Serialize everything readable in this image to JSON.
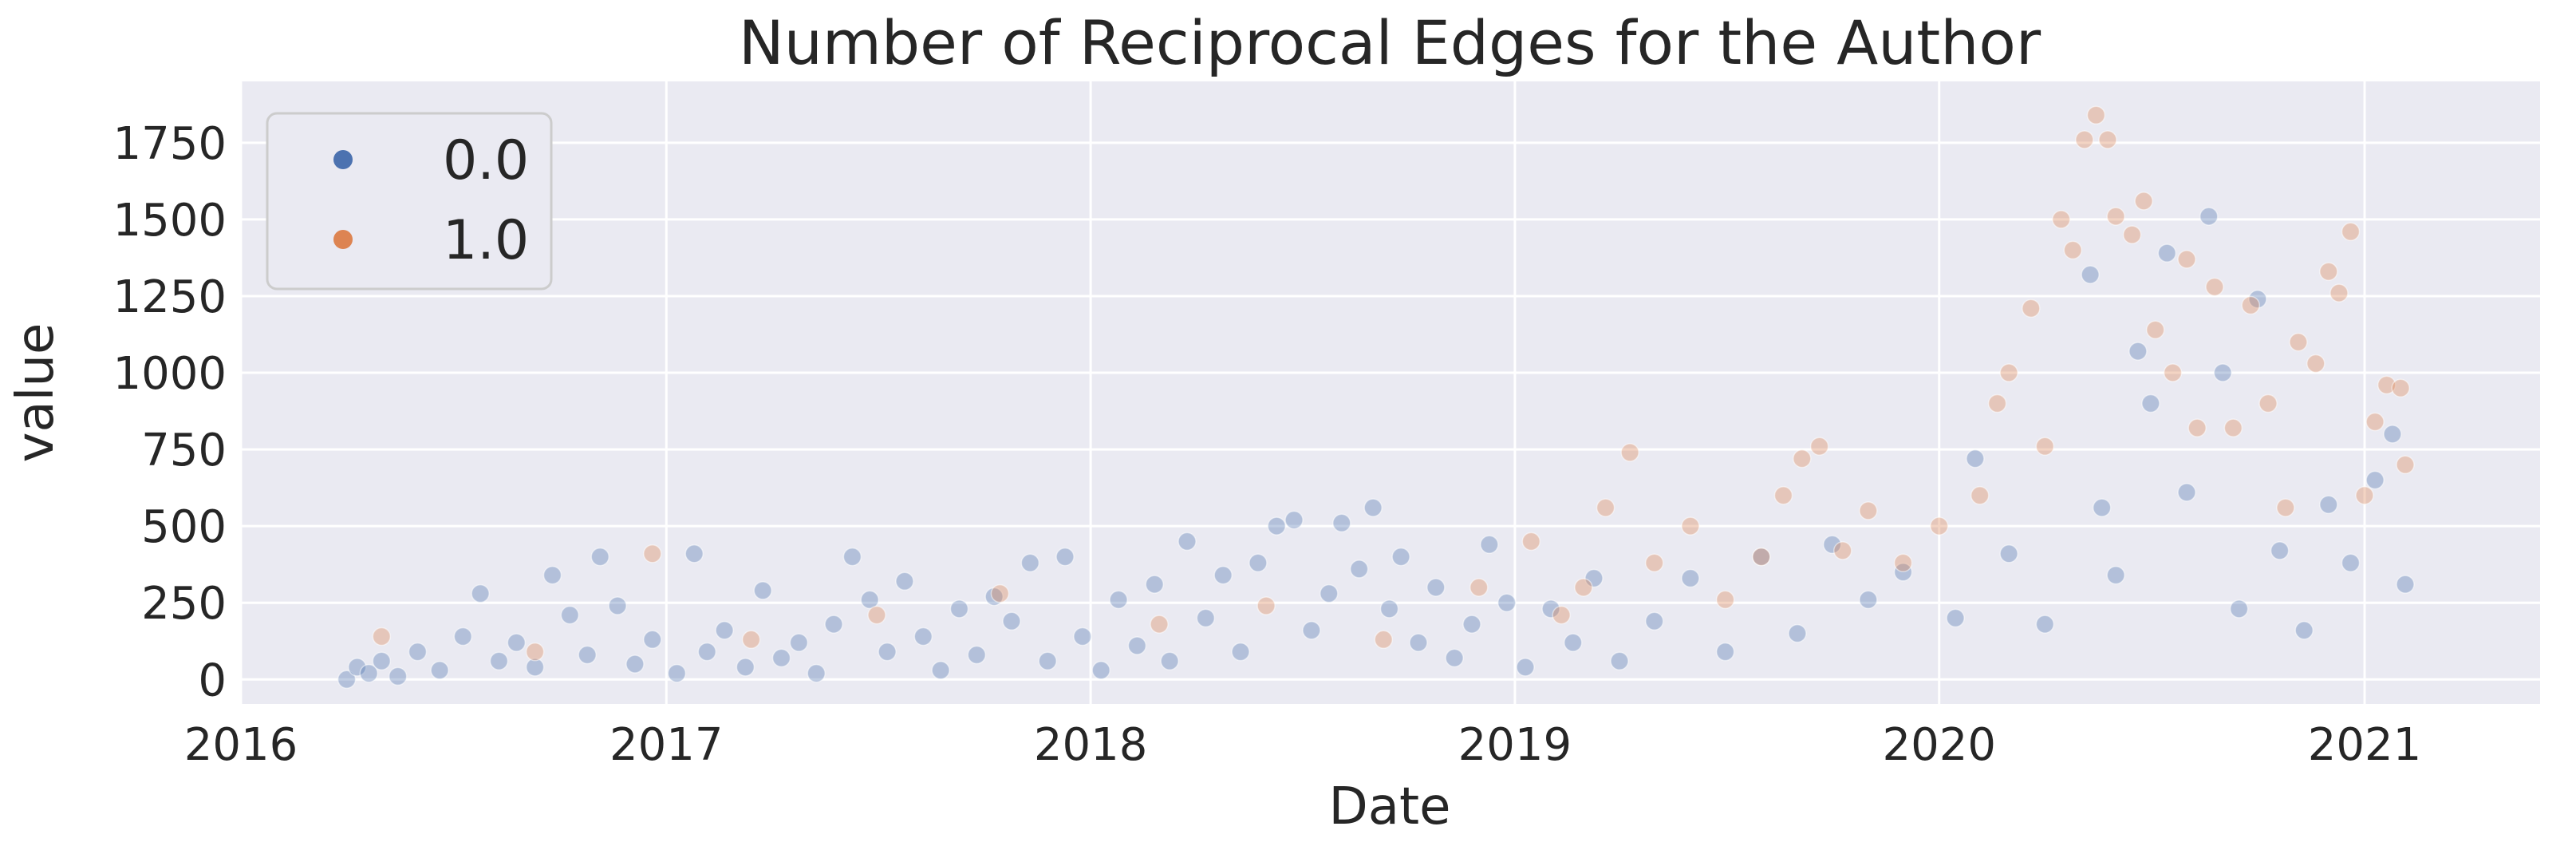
{
  "chart_data": {
    "type": "scatter",
    "title": "Number of Reciprocal Edges for the Author",
    "xlabel": "Date",
    "ylabel": "value",
    "x_type": "date",
    "xlim": [
      "2016-01-01",
      "2021-06-01"
    ],
    "ylim": [
      -80,
      1950
    ],
    "xticks": [
      {
        "value": "2016-01-01",
        "label": "2016"
      },
      {
        "value": "2017-01-01",
        "label": "2017"
      },
      {
        "value": "2018-01-01",
        "label": "2018"
      },
      {
        "value": "2019-01-01",
        "label": "2019"
      },
      {
        "value": "2020-01-01",
        "label": "2020"
      },
      {
        "value": "2021-01-01",
        "label": "2021"
      }
    ],
    "yticks": [
      0,
      250,
      500,
      750,
      1000,
      1250,
      1500,
      1750
    ],
    "grid": true,
    "background": "#eaeaf2",
    "legend": {
      "position": "top-left",
      "entries": [
        "0.0",
        "1.0"
      ]
    },
    "series": [
      {
        "name": "0.0",
        "color": "#4c72b0",
        "points": [
          [
            "2016-04-01",
            0
          ],
          [
            "2016-04-10",
            40
          ],
          [
            "2016-04-20",
            20
          ],
          [
            "2016-05-01",
            60
          ],
          [
            "2016-05-15",
            10
          ],
          [
            "2016-06-01",
            90
          ],
          [
            "2016-06-20",
            30
          ],
          [
            "2016-07-10",
            140
          ],
          [
            "2016-07-25",
            280
          ],
          [
            "2016-08-10",
            60
          ],
          [
            "2016-08-25",
            120
          ],
          [
            "2016-09-10",
            40
          ],
          [
            "2016-09-25",
            340
          ],
          [
            "2016-10-10",
            210
          ],
          [
            "2016-10-25",
            80
          ],
          [
            "2016-11-05",
            400
          ],
          [
            "2016-11-20",
            240
          ],
          [
            "2016-12-05",
            50
          ],
          [
            "2016-12-20",
            130
          ],
          [
            "2017-01-10",
            20
          ],
          [
            "2017-01-25",
            410
          ],
          [
            "2017-02-05",
            90
          ],
          [
            "2017-02-20",
            160
          ],
          [
            "2017-03-10",
            40
          ],
          [
            "2017-03-25",
            290
          ],
          [
            "2017-04-10",
            70
          ],
          [
            "2017-04-25",
            120
          ],
          [
            "2017-05-10",
            20
          ],
          [
            "2017-05-25",
            180
          ],
          [
            "2017-06-10",
            400
          ],
          [
            "2017-06-25",
            260
          ],
          [
            "2017-07-10",
            90
          ],
          [
            "2017-07-25",
            320
          ],
          [
            "2017-08-10",
            140
          ],
          [
            "2017-08-25",
            30
          ],
          [
            "2017-09-10",
            230
          ],
          [
            "2017-09-25",
            80
          ],
          [
            "2017-10-10",
            270
          ],
          [
            "2017-10-25",
            190
          ],
          [
            "2017-11-10",
            380
          ],
          [
            "2017-11-25",
            60
          ],
          [
            "2017-12-10",
            400
          ],
          [
            "2017-12-25",
            140
          ],
          [
            "2018-01-10",
            30
          ],
          [
            "2018-01-25",
            260
          ],
          [
            "2018-02-10",
            110
          ],
          [
            "2018-02-25",
            310
          ],
          [
            "2018-03-10",
            60
          ],
          [
            "2018-03-25",
            450
          ],
          [
            "2018-04-10",
            200
          ],
          [
            "2018-04-25",
            340
          ],
          [
            "2018-05-10",
            90
          ],
          [
            "2018-05-25",
            380
          ],
          [
            "2018-06-10",
            500
          ],
          [
            "2018-06-25",
            520
          ],
          [
            "2018-07-10",
            160
          ],
          [
            "2018-07-25",
            280
          ],
          [
            "2018-08-05",
            510
          ],
          [
            "2018-08-20",
            360
          ],
          [
            "2018-09-01",
            560
          ],
          [
            "2018-09-15",
            230
          ],
          [
            "2018-09-25",
            400
          ],
          [
            "2018-10-10",
            120
          ],
          [
            "2018-10-25",
            300
          ],
          [
            "2018-11-10",
            70
          ],
          [
            "2018-11-25",
            180
          ],
          [
            "2018-12-10",
            440
          ],
          [
            "2018-12-25",
            250
          ],
          [
            "2019-01-10",
            40
          ],
          [
            "2019-02-01",
            230
          ],
          [
            "2019-02-20",
            120
          ],
          [
            "2019-03-10",
            330
          ],
          [
            "2019-04-01",
            60
          ],
          [
            "2019-05-01",
            190
          ],
          [
            "2019-06-01",
            330
          ],
          [
            "2019-07-01",
            90
          ],
          [
            "2019-08-01",
            400
          ],
          [
            "2019-09-01",
            150
          ],
          [
            "2019-10-01",
            440
          ],
          [
            "2019-11-01",
            260
          ],
          [
            "2019-12-01",
            350
          ],
          [
            "2020-01-15",
            200
          ],
          [
            "2020-02-01",
            720
          ],
          [
            "2020-03-01",
            410
          ],
          [
            "2020-04-01",
            180
          ],
          [
            "2020-05-10",
            1320
          ],
          [
            "2020-05-20",
            560
          ],
          [
            "2020-06-01",
            340
          ],
          [
            "2020-06-20",
            1070
          ],
          [
            "2020-07-01",
            900
          ],
          [
            "2020-07-15",
            1390
          ],
          [
            "2020-08-01",
            610
          ],
          [
            "2020-08-20",
            1510
          ],
          [
            "2020-09-01",
            1000
          ],
          [
            "2020-09-15",
            230
          ],
          [
            "2020-10-01",
            1240
          ],
          [
            "2020-10-20",
            420
          ],
          [
            "2020-11-10",
            160
          ],
          [
            "2020-12-01",
            570
          ],
          [
            "2020-12-20",
            380
          ],
          [
            "2021-01-10",
            650
          ],
          [
            "2021-01-25",
            800
          ],
          [
            "2021-02-05",
            310
          ]
        ]
      },
      {
        "name": "1.0",
        "color": "#dd8452",
        "points": [
          [
            "2016-05-01",
            140
          ],
          [
            "2016-09-10",
            90
          ],
          [
            "2016-12-20",
            410
          ],
          [
            "2017-03-15",
            130
          ],
          [
            "2017-07-01",
            210
          ],
          [
            "2017-10-15",
            280
          ],
          [
            "2018-03-01",
            180
          ],
          [
            "2018-06-01",
            240
          ],
          [
            "2018-09-10",
            130
          ],
          [
            "2018-12-01",
            300
          ],
          [
            "2019-01-15",
            450
          ],
          [
            "2019-02-10",
            210
          ],
          [
            "2019-03-01",
            300
          ],
          [
            "2019-03-20",
            560
          ],
          [
            "2019-04-10",
            740
          ],
          [
            "2019-05-01",
            380
          ],
          [
            "2019-06-01",
            500
          ],
          [
            "2019-07-01",
            260
          ],
          [
            "2019-08-01",
            400
          ],
          [
            "2019-08-20",
            600
          ],
          [
            "2019-09-05",
            720
          ],
          [
            "2019-09-20",
            760
          ],
          [
            "2019-10-10",
            420
          ],
          [
            "2019-11-01",
            550
          ],
          [
            "2019-12-01",
            380
          ],
          [
            "2020-01-01",
            500
          ],
          [
            "2020-02-05",
            600
          ],
          [
            "2020-02-20",
            900
          ],
          [
            "2020-03-01",
            1000
          ],
          [
            "2020-03-20",
            1210
          ],
          [
            "2020-04-01",
            760
          ],
          [
            "2020-04-15",
            1500
          ],
          [
            "2020-04-25",
            1400
          ],
          [
            "2020-05-05",
            1760
          ],
          [
            "2020-05-15",
            1840
          ],
          [
            "2020-05-25",
            1760
          ],
          [
            "2020-06-01",
            1510
          ],
          [
            "2020-06-15",
            1450
          ],
          [
            "2020-06-25",
            1560
          ],
          [
            "2020-07-05",
            1140
          ],
          [
            "2020-07-20",
            1000
          ],
          [
            "2020-08-01",
            1370
          ],
          [
            "2020-08-10",
            820
          ],
          [
            "2020-08-25",
            1280
          ],
          [
            "2020-09-10",
            820
          ],
          [
            "2020-09-25",
            1220
          ],
          [
            "2020-10-10",
            900
          ],
          [
            "2020-10-25",
            560
          ],
          [
            "2020-11-05",
            1100
          ],
          [
            "2020-11-20",
            1030
          ],
          [
            "2020-12-01",
            1330
          ],
          [
            "2020-12-10",
            1260
          ],
          [
            "2020-12-20",
            1460
          ],
          [
            "2021-01-01",
            600
          ],
          [
            "2021-01-10",
            840
          ],
          [
            "2021-01-20",
            960
          ],
          [
            "2021-02-01",
            950
          ],
          [
            "2021-02-05",
            700
          ]
        ]
      }
    ]
  }
}
